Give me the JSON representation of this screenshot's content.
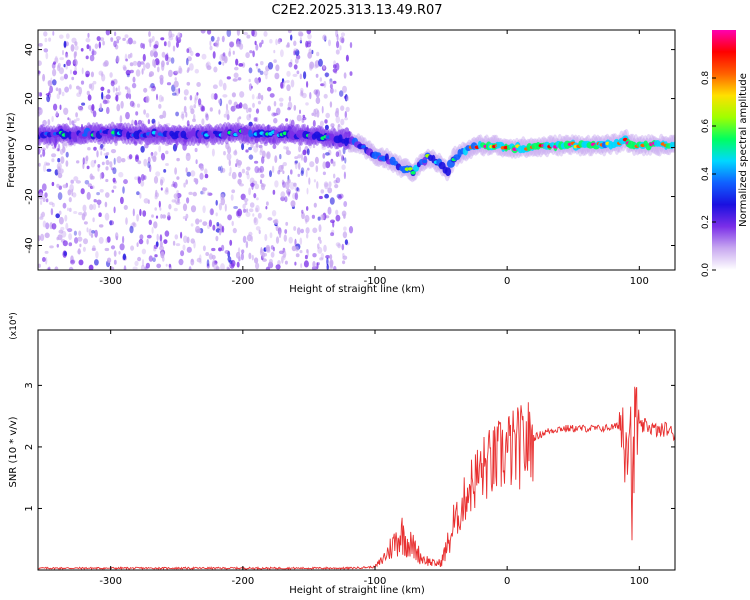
{
  "title": "C2E2.2025.313.13.49.R07",
  "chart_data": [
    {
      "type": "heatmap",
      "xlabel": "Height of straight line (km)",
      "ylabel": "Frequency (Hz)",
      "xlim": [
        -355,
        127
      ],
      "ylim": [
        -50,
        48
      ],
      "xticks": [
        -300,
        -200,
        -100,
        0,
        100
      ],
      "xtick_labels": [
        "-300",
        "-200",
        "-100",
        "0",
        "100"
      ],
      "yticks": [
        -40,
        -20,
        0,
        20,
        40
      ],
      "ytick_labels": [
        "-40",
        "-20",
        "0",
        "20",
        "40"
      ],
      "colorbar": {
        "label": "Normalized spectral amplitude",
        "range": [
          0,
          1
        ],
        "ticks": [
          0.0,
          0.2,
          0.4,
          0.6,
          0.8
        ],
        "tick_labels": [
          "0.0",
          "0.2",
          "0.4",
          "0.6",
          "0.8"
        ],
        "colors": [
          "#ffffff",
          "#c8a8f0",
          "#7a2ee8",
          "#1a10e0",
          "#1060ff",
          "#00d8ff",
          "#00ff60",
          "#a0ff00",
          "#ffe000",
          "#ff6000",
          "#ff0000",
          "#ff00b0"
        ]
      },
      "noise_region_x": [
        -355,
        -118
      ],
      "ridge": {
        "x": [
          -355,
          -300,
          -250,
          -200,
          -150,
          -130,
          -115,
          -100,
          -90,
          -80,
          -70,
          -65,
          -60,
          -50,
          -45,
          -40,
          -30,
          -20,
          -10,
          0,
          20,
          40,
          60,
          80,
          90,
          95,
          100,
          127
        ],
        "frequency_hz": [
          5,
          6,
          5,
          6,
          5,
          4,
          2,
          -3,
          -5,
          -8,
          -10,
          -6,
          -4,
          -7,
          -10,
          -4,
          -1,
          1,
          1,
          0,
          0,
          1,
          1,
          1,
          3,
          1,
          1,
          1
        ],
        "amplitude": [
          0.45,
          0.45,
          0.4,
          0.45,
          0.4,
          0.4,
          0.45,
          0.5,
          0.55,
          0.6,
          0.65,
          0.55,
          0.5,
          0.55,
          0.5,
          0.6,
          0.7,
          0.85,
          0.9,
          0.9,
          0.9,
          0.9,
          0.88,
          0.88,
          0.85,
          0.9,
          0.9,
          0.85
        ]
      }
    },
    {
      "type": "line",
      "xlabel": "Height of straight line (km)",
      "ylabel": "SNR (10 * v/v)",
      "y_multiplier_label": "(x10⁴)",
      "xlim": [
        -355,
        127
      ],
      "ylim": [
        0,
        3.9
      ],
      "xticks": [
        -300,
        -200,
        -100,
        0,
        100
      ],
      "xtick_labels": [
        "-300",
        "-200",
        "-100",
        "0",
        "100"
      ],
      "yticks": [
        1,
        2,
        3
      ],
      "ytick_labels": [
        "1",
        "2",
        "3"
      ],
      "color": "#e83030",
      "series": [
        {
          "name": "SNR",
          "x": [
            -355,
            -300,
            -250,
            -200,
            -150,
            -120,
            -100,
            -95,
            -90,
            -85,
            -80,
            -75,
            -70,
            -65,
            -60,
            -55,
            -50,
            -45,
            -40,
            -35,
            -30,
            -25,
            -20,
            -15,
            -10,
            -5,
            0,
            5,
            10,
            15,
            20,
            30,
            40,
            50,
            60,
            70,
            80,
            85,
            90,
            93,
            95,
            97,
            100,
            105,
            110,
            115,
            120,
            127
          ],
          "y": [
            0.03,
            0.03,
            0.03,
            0.03,
            0.03,
            0.03,
            0.05,
            0.15,
            0.3,
            0.45,
            0.6,
            0.45,
            0.35,
            0.2,
            0.15,
            0.1,
            0.12,
            0.4,
            0.75,
            0.95,
            1.3,
            1.45,
            1.6,
            1.7,
            1.75,
            1.85,
            1.95,
            1.95,
            2.0,
            2.05,
            2.15,
            2.25,
            2.3,
            2.3,
            2.3,
            2.3,
            2.32,
            2.35,
            2.3,
            2.5,
            1.0,
            2.6,
            2.3,
            2.35,
            2.3,
            2.25,
            2.3,
            2.2
          ]
        }
      ]
    }
  ]
}
